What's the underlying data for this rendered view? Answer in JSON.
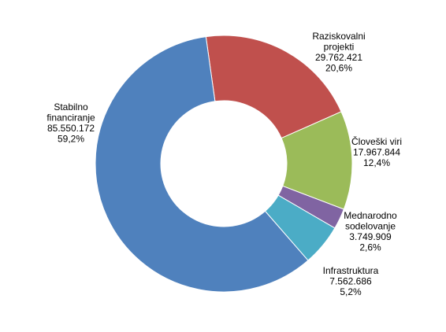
{
  "chart_data": {
    "type": "pie",
    "variant": "donut",
    "categories": [
      "Raziskovalni projekti",
      "Človeški viri",
      "Mednarodno sodelovanje",
      "Infrastruktura",
      "Stabilno financiranje"
    ],
    "values": [
      29762421,
      17967844,
      3749909,
      7562686,
      85550172
    ],
    "percentages": [
      "20,6%",
      "12,4%",
      "2,6%",
      "5,2%",
      "59,2%"
    ],
    "value_labels": [
      "29.762.421",
      "17.967.844",
      "3.749.909",
      "7.562.686",
      "85.550.172"
    ],
    "label_lines": [
      [
        "Raziskovalni",
        "projekti"
      ],
      [
        "Človeški viri"
      ],
      [
        "Mednarodno",
        "sodelovanje"
      ],
      [
        "Infrastruktura"
      ],
      [
        "Stabilno",
        "financiranje"
      ]
    ],
    "colors": [
      "#C0504D",
      "#9BBB59",
      "#8064A2",
      "#4BACC6",
      "#4F81BD"
    ],
    "title": "",
    "legend": "none"
  }
}
